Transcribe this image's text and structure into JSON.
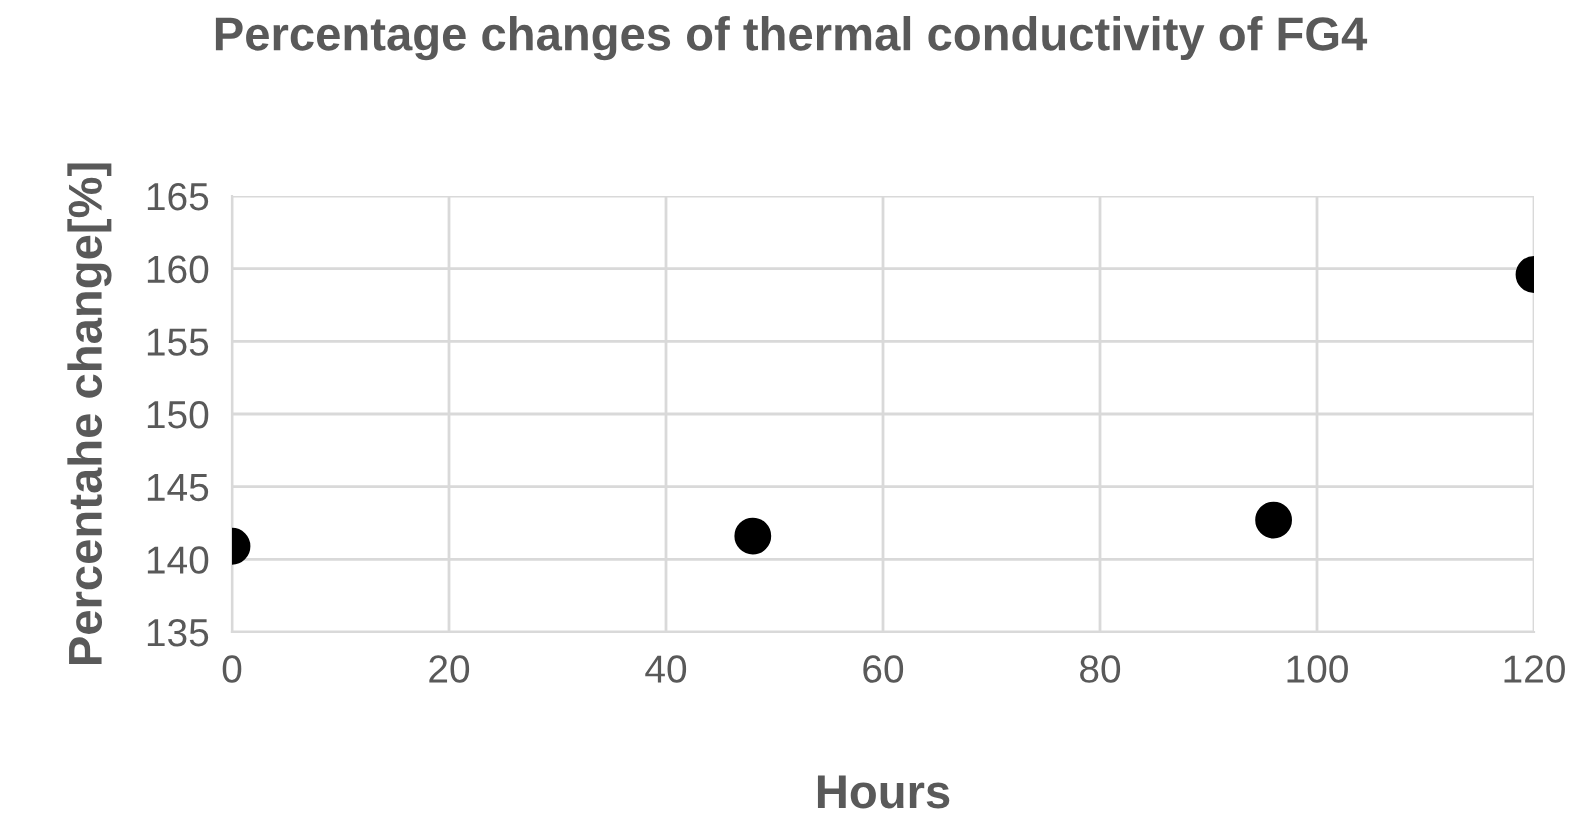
{
  "chart_data": {
    "type": "scatter",
    "title": "Percentage changes of thermal conductivity of FG4",
    "xlabel": "Hours",
    "ylabel": "Percentahe change[%]",
    "x": [
      0,
      48,
      96,
      120
    ],
    "series": [
      {
        "color": "#000000",
        "values": [
          140.9,
          141.6,
          142.7,
          159.6
        ]
      }
    ],
    "xlim": [
      0,
      120
    ],
    "xticks": [
      0,
      20,
      40,
      60,
      80,
      100,
      120
    ],
    "ylim": [
      135,
      165
    ],
    "yticks": [
      135,
      140,
      145,
      150,
      155,
      160,
      165
    ],
    "grid": true,
    "marker": "circle"
  }
}
